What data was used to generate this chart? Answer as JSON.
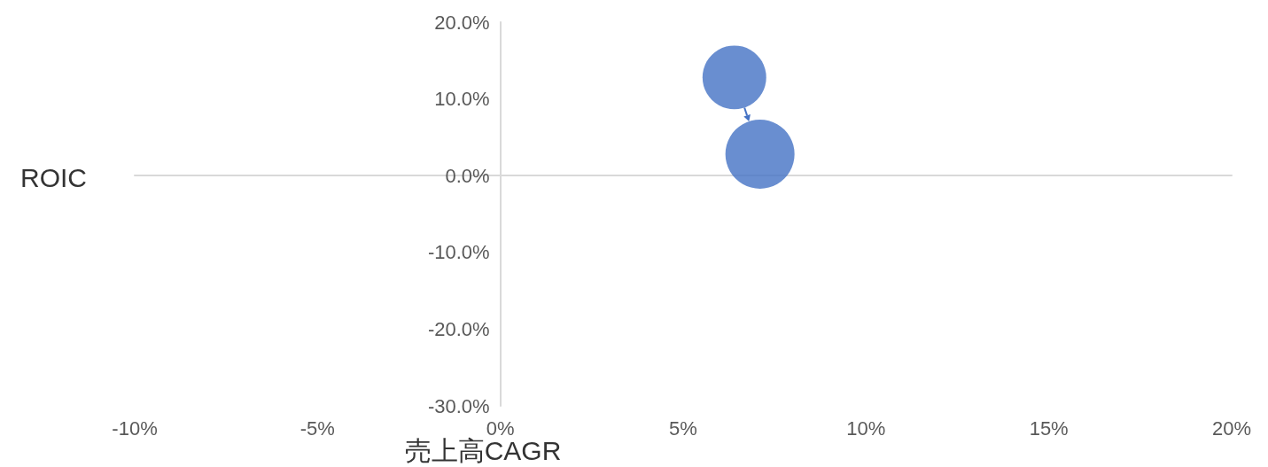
{
  "chart_data": {
    "type": "bubble",
    "xlabel": "売上高CAGR",
    "ylabel": "ROIC",
    "series": [
      {
        "color": "#4472c4",
        "x": [
          6.4,
          7.1
        ],
        "values": [
          12.8,
          2.8
        ],
        "sizes": [
          0.85,
          1
        ]
      }
    ],
    "xlim": [
      -10,
      20
    ],
    "xticks": [
      {
        "value": -10,
        "label": "-10%"
      },
      {
        "value": -5,
        "label": "-5%"
      },
      {
        "value": 0,
        "label": "0%"
      },
      {
        "value": 5,
        "label": "5%"
      },
      {
        "value": 10,
        "label": "10%"
      },
      {
        "value": 15,
        "label": "15%"
      },
      {
        "value": 20,
        "label": "20%"
      }
    ],
    "ylim": [
      -30,
      20
    ],
    "yticks": [
      {
        "value": -30,
        "label": "-30.0%"
      },
      {
        "value": -20,
        "label": "-20.0%"
      },
      {
        "value": -10,
        "label": "-10.0%"
      },
      {
        "value": 0,
        "label": "0.0%"
      },
      {
        "value": 10,
        "label": "10.0%"
      },
      {
        "value": 20,
        "label": "20.0%"
      }
    ]
  }
}
